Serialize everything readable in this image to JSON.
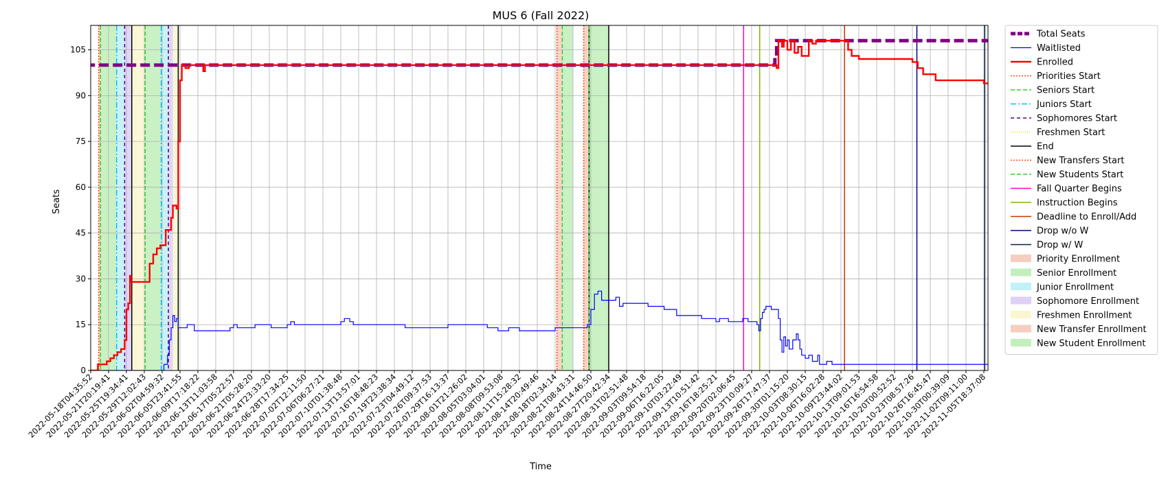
{
  "chart_data": {
    "type": "line",
    "title": "MUS 6 (Fall 2022)",
    "xlabel": "Time",
    "ylabel": "Seats",
    "ylim": [
      0,
      113
    ],
    "y_ticks": [
      0,
      15,
      30,
      45,
      60,
      75,
      90,
      105
    ],
    "grid": true,
    "legend_position": "outside-right",
    "x_tick_labels": [
      "2022-05-18T04:35:52",
      "2022-05-21T20:19:41",
      "2022-05-25T19:34:41",
      "2022-05-29T12:02:43",
      "2022-06-02T04:59:32",
      "2022-06-05T23:41:55",
      "2022-06-09T17:18:22",
      "2022-06-13T11:03:58",
      "2022-06-17T05:22:57",
      "2022-06-21T05:28:20",
      "2022-06-24T23:33:20",
      "2022-06-28T17:34:25",
      "2022-07-02T12:11:50",
      "2022-07-06T06:27:21",
      "2022-07-10T01:38:48",
      "2022-07-13T13:57:01",
      "2022-07-16T18:48:23",
      "2022-07-19T23:38:34",
      "2022-07-23T04:49:12",
      "2022-07-26T09:37:53",
      "2022-07-29T16:13:37",
      "2022-08-01T21:26:02",
      "2022-08-05T03:04:01",
      "2022-08-08T09:53:08",
      "2022-08-11T15:28:32",
      "2022-08-14T20:49:46",
      "2022-08-18T02:34:14",
      "2022-08-21T08:43:31",
      "2022-08-24T14:46:50",
      "2022-08-27T20:42:34",
      "2022-08-31T02:51:48",
      "2022-09-03T09:54:18",
      "2022-09-06T16:22:05",
      "2022-09-10T03:22:49",
      "2022-09-13T10:51:42",
      "2022-09-16T18:25:21",
      "2022-09-20T02:06:45",
      "2022-09-23T10:09:27",
      "2022-09-26T17:47:37",
      "2022-09-30T01:15:20",
      "2022-10-03T08:30:15",
      "2022-10-06T16:02:28",
      "2022-10-09T23:44:02",
      "2022-10-13T09:01:53",
      "2022-10-16T16:54:58",
      "2022-10-20T00:52:52",
      "2022-10-23T08:57:26",
      "2022-10-26T16:45:47",
      "2022-10-30T00:39:09",
      "2022-11-02T09:11:00",
      "2022-11-05T18:37:08"
    ],
    "x_axis_note": "x values expressed as tick index (0 = first tick label, 50 = last tick label)",
    "series": [
      {
        "name": "Total Seats",
        "color": "#800080",
        "style": "dashed-thick",
        "points": [
          [
            -0.3,
            100
          ],
          [
            38.3,
            100
          ],
          [
            38.3,
            103
          ],
          [
            38.4,
            108
          ],
          [
            50.3,
            108
          ]
        ]
      },
      {
        "name": "Waitlisted",
        "color": "#0000ff",
        "style": "solid-thin",
        "points": [
          [
            -0.3,
            0
          ],
          [
            3.9,
            0
          ],
          [
            4.1,
            2
          ],
          [
            4.3,
            5
          ],
          [
            4.4,
            10
          ],
          [
            4.5,
            14
          ],
          [
            4.6,
            18
          ],
          [
            4.7,
            16
          ],
          [
            4.8,
            17
          ],
          [
            4.9,
            14
          ],
          [
            5.3,
            14
          ],
          [
            5.4,
            15
          ],
          [
            5.7,
            15
          ],
          [
            5.8,
            13
          ],
          [
            7.1,
            13
          ],
          [
            7.7,
            13
          ],
          [
            7.8,
            14
          ],
          [
            8.0,
            15
          ],
          [
            8.2,
            14
          ],
          [
            9.0,
            14
          ],
          [
            9.2,
            15
          ],
          [
            10.0,
            15
          ],
          [
            10.1,
            14
          ],
          [
            10.8,
            14
          ],
          [
            11.0,
            15
          ],
          [
            11.2,
            16
          ],
          [
            11.4,
            15
          ],
          [
            13.8,
            15
          ],
          [
            14.0,
            16
          ],
          [
            14.2,
            17
          ],
          [
            14.5,
            16
          ],
          [
            14.7,
            15
          ],
          [
            17.5,
            15
          ],
          [
            17.6,
            14
          ],
          [
            19.8,
            14
          ],
          [
            20.0,
            15
          ],
          [
            22.0,
            15
          ],
          [
            22.2,
            14
          ],
          [
            22.6,
            14
          ],
          [
            22.8,
            13
          ],
          [
            23.2,
            13
          ],
          [
            23.4,
            14
          ],
          [
            23.8,
            14
          ],
          [
            24.0,
            13
          ],
          [
            25.9,
            13
          ],
          [
            26.0,
            14
          ],
          [
            27.3,
            14
          ],
          [
            27.6,
            14
          ],
          [
            27.8,
            15
          ],
          [
            28.0,
            20
          ],
          [
            28.2,
            25
          ],
          [
            28.4,
            26
          ],
          [
            28.6,
            23
          ],
          [
            29.2,
            23
          ],
          [
            29.4,
            24
          ],
          [
            29.6,
            21
          ],
          [
            29.8,
            22
          ],
          [
            31.0,
            22
          ],
          [
            31.2,
            21
          ],
          [
            32.0,
            21
          ],
          [
            32.1,
            20
          ],
          [
            32.7,
            20
          ],
          [
            32.8,
            18
          ],
          [
            34.0,
            18
          ],
          [
            34.2,
            17
          ],
          [
            34.9,
            17
          ],
          [
            35.0,
            16
          ],
          [
            35.2,
            17
          ],
          [
            35.6,
            17
          ],
          [
            35.7,
            16
          ],
          [
            36.4,
            16
          ],
          [
            36.5,
            17
          ],
          [
            36.8,
            16
          ],
          [
            37.2,
            16
          ],
          [
            37.3,
            15
          ],
          [
            37.4,
            13
          ],
          [
            37.5,
            17
          ],
          [
            37.6,
            19
          ],
          [
            37.7,
            20
          ],
          [
            37.8,
            21
          ],
          [
            38.1,
            20
          ],
          [
            38.4,
            20
          ],
          [
            38.5,
            17
          ],
          [
            38.6,
            10
          ],
          [
            38.7,
            6
          ],
          [
            38.8,
            11
          ],
          [
            38.9,
            8
          ],
          [
            39.0,
            10
          ],
          [
            39.1,
            7
          ],
          [
            39.3,
            10
          ],
          [
            39.5,
            12
          ],
          [
            39.6,
            10
          ],
          [
            39.7,
            7
          ],
          [
            39.8,
            5
          ],
          [
            40.0,
            4
          ],
          [
            40.2,
            5
          ],
          [
            40.4,
            3
          ],
          [
            40.7,
            5
          ],
          [
            40.8,
            2
          ],
          [
            41.0,
            2
          ],
          [
            41.2,
            3
          ],
          [
            41.4,
            3
          ],
          [
            41.5,
            2
          ],
          [
            50.3,
            2
          ]
        ]
      },
      {
        "name": "Enrolled",
        "color": "#ff0000",
        "style": "solid-thick",
        "points": [
          [
            -0.3,
            0
          ],
          [
            0.3,
            0
          ],
          [
            0.4,
            2
          ],
          [
            0.7,
            2
          ],
          [
            0.9,
            3
          ],
          [
            1.1,
            4
          ],
          [
            1.3,
            5
          ],
          [
            1.5,
            6
          ],
          [
            1.7,
            7
          ],
          [
            1.9,
            10
          ],
          [
            2.0,
            20
          ],
          [
            2.1,
            22
          ],
          [
            2.2,
            31
          ],
          [
            2.25,
            29
          ],
          [
            3.1,
            29
          ],
          [
            3.3,
            35
          ],
          [
            3.5,
            38
          ],
          [
            3.7,
            40
          ],
          [
            3.9,
            41
          ],
          [
            4.2,
            46
          ],
          [
            4.5,
            50
          ],
          [
            4.6,
            54
          ],
          [
            4.8,
            53
          ],
          [
            4.9,
            75
          ],
          [
            5.0,
            95
          ],
          [
            5.1,
            100
          ],
          [
            5.3,
            99
          ],
          [
            5.5,
            100
          ],
          [
            6.2,
            100
          ],
          [
            6.3,
            98
          ],
          [
            6.4,
            100
          ],
          [
            30.0,
            100
          ],
          [
            38.3,
            100
          ],
          [
            38.4,
            99
          ],
          [
            38.5,
            108
          ],
          [
            38.7,
            106
          ],
          [
            38.8,
            108
          ],
          [
            39.0,
            105
          ],
          [
            39.2,
            108
          ],
          [
            39.4,
            104
          ],
          [
            39.6,
            106
          ],
          [
            39.8,
            103
          ],
          [
            40.0,
            103
          ],
          [
            40.2,
            108
          ],
          [
            40.4,
            107
          ],
          [
            40.6,
            108
          ],
          [
            42.2,
            108
          ],
          [
            42.4,
            105
          ],
          [
            42.6,
            103
          ],
          [
            43.0,
            102
          ],
          [
            45.5,
            102
          ],
          [
            46.0,
            101
          ],
          [
            46.3,
            99
          ],
          [
            46.6,
            97
          ],
          [
            47.1,
            97
          ],
          [
            47.3,
            95
          ],
          [
            49.8,
            95
          ],
          [
            50.0,
            94
          ],
          [
            50.3,
            94
          ]
        ]
      }
    ],
    "vertical_lines": [
      {
        "name": "Priorities Start",
        "x": 0.45,
        "color": "#ff4500",
        "dash": "2,2"
      },
      {
        "name": "Seniors Start",
        "x": 0.55,
        "color": "#32cd32",
        "dash": "6,3"
      },
      {
        "name": "Juniors Start",
        "x": 1.45,
        "color": "#00bfff",
        "dash": "8,3,2,3"
      },
      {
        "name": "Sophomores Start",
        "x": 1.9,
        "color": "#4b0082",
        "dash": "5,4"
      },
      {
        "name": "Freshmen Start",
        "x": 2.3,
        "color": "#ffd700",
        "dash": "1,2"
      },
      {
        "name": "End",
        "x": 2.3,
        "color": "#000000",
        "dash": ""
      },
      {
        "name": "Seniors Start",
        "x": 3.05,
        "color": "#32cd32",
        "dash": "6,3"
      },
      {
        "name": "Juniors Start",
        "x": 3.95,
        "color": "#00bfff",
        "dash": "8,3,2,3"
      },
      {
        "name": "Sophomores Start",
        "x": 4.35,
        "color": "#4b0082",
        "dash": "5,4"
      },
      {
        "name": "End",
        "x": 4.9,
        "color": "#000000",
        "dash": ""
      },
      {
        "name": "New Transfers Start",
        "x": 26.1,
        "color": "#ff4500",
        "dash": "2,2"
      },
      {
        "name": "New Students Start",
        "x": 26.4,
        "color": "#32cd32",
        "dash": "6,3"
      },
      {
        "name": "End",
        "x": 27.9,
        "color": "#000000",
        "dash": ""
      },
      {
        "name": "New Transfers Start",
        "x": 27.6,
        "color": "#ff4500",
        "dash": "2,2"
      },
      {
        "name": "New Students Start",
        "x": 27.9,
        "color": "#32cd32",
        "dash": "6,3"
      },
      {
        "name": "End",
        "x": 29.0,
        "color": "#000000",
        "dash": ""
      },
      {
        "name": "Fall Quarter Begins",
        "x": 36.55,
        "color": "#ff00cc",
        "dash": ""
      },
      {
        "name": "Instruction Begins",
        "x": 37.45,
        "color": "#7cb800",
        "dash": ""
      },
      {
        "name": "Deadline to Enroll/Add",
        "x": 42.2,
        "color": "#cc3300",
        "dash": ""
      },
      {
        "name": "Drop w/o W",
        "x": 46.25,
        "color": "#000080",
        "dash": ""
      },
      {
        "name": "Drop w/ W",
        "x": 50.05,
        "color": "#0b1f4d",
        "dash": ""
      }
    ],
    "spans": [
      {
        "name": "Priority Enrollment",
        "x0": 0.45,
        "x1": 0.55,
        "color": "#f4c6b4"
      },
      {
        "name": "Senior Enrollment",
        "x0": 0.55,
        "x1": 1.45,
        "color": "#b7ecb0"
      },
      {
        "name": "Junior Enrollment",
        "x0": 1.45,
        "x1": 1.9,
        "color": "#b7eef4"
      },
      {
        "name": "Sophomore Enrollment",
        "x0": 1.9,
        "x1": 2.3,
        "color": "#d8c8f4"
      },
      {
        "name": "Freshmen Enrollment",
        "x0": 2.3,
        "x1": 3.05,
        "color": "#f8f4c8"
      },
      {
        "name": "Senior Enrollment",
        "x0": 3.05,
        "x1": 3.95,
        "color": "#b7ecb0"
      },
      {
        "name": "Junior Enrollment",
        "x0": 3.95,
        "x1": 4.35,
        "color": "#b7eef4"
      },
      {
        "name": "Sophomore Enrollment",
        "x0": 4.35,
        "x1": 4.6,
        "color": "#d8c8f4"
      },
      {
        "name": "Freshmen Enrollment",
        "x0": 4.6,
        "x1": 4.9,
        "color": "#f8f4c8"
      },
      {
        "name": "New Transfer Enrollment",
        "x0": 26.1,
        "x1": 26.4,
        "color": "#f4c6b4"
      },
      {
        "name": "New Student Enrollment",
        "x0": 26.4,
        "x1": 27.0,
        "color": "#b7ecb0"
      },
      {
        "name": "New Transfer Enrollment",
        "x0": 27.6,
        "x1": 27.9,
        "color": "#f4c6b4"
      },
      {
        "name": "New Student Enrollment",
        "x0": 27.9,
        "x1": 29.0,
        "color": "#b7ecb0"
      }
    ],
    "legend": [
      {
        "label": "Total Seats",
        "kind": "line",
        "color": "#800080",
        "dash": "7,3",
        "width": 5
      },
      {
        "label": "Waitlisted",
        "kind": "line",
        "color": "#0000ff",
        "dash": "",
        "width": 1.2
      },
      {
        "label": "Enrolled",
        "kind": "line",
        "color": "#ff0000",
        "dash": "",
        "width": 2.5
      },
      {
        "label": "Priorities Start",
        "kind": "line",
        "color": "#ff4500",
        "dash": "2,2",
        "width": 1.5
      },
      {
        "label": "Seniors Start",
        "kind": "line",
        "color": "#32cd32",
        "dash": "6,3",
        "width": 1.5
      },
      {
        "label": "Juniors Start",
        "kind": "line",
        "color": "#00bfff",
        "dash": "8,3,2,3",
        "width": 1.5
      },
      {
        "label": "Sophomores Start",
        "kind": "line",
        "color": "#4b0082",
        "dash": "5,4",
        "width": 1.5
      },
      {
        "label": "Freshmen Start",
        "kind": "line",
        "color": "#ffd700",
        "dash": "1,2",
        "width": 1.5
      },
      {
        "label": "End",
        "kind": "line",
        "color": "#000000",
        "dash": "",
        "width": 1.5
      },
      {
        "label": "New Transfers Start",
        "kind": "line",
        "color": "#ff4500",
        "dash": "2,2",
        "width": 1.5
      },
      {
        "label": "New Students Start",
        "kind": "line",
        "color": "#32cd32",
        "dash": "6,3",
        "width": 1.5
      },
      {
        "label": "Fall Quarter Begins",
        "kind": "line",
        "color": "#ff00cc",
        "dash": "",
        "width": 1.5
      },
      {
        "label": "Instruction Begins",
        "kind": "line",
        "color": "#7cb800",
        "dash": "",
        "width": 1.5
      },
      {
        "label": "Deadline to Enroll/Add",
        "kind": "line",
        "color": "#cc3300",
        "dash": "",
        "width": 1.5
      },
      {
        "label": "Drop w/o W",
        "kind": "line",
        "color": "#000080",
        "dash": "",
        "width": 1.5
      },
      {
        "label": "Drop w/ W",
        "kind": "line",
        "color": "#0b1f4d",
        "dash": "",
        "width": 1.5
      },
      {
        "label": "Priority Enrollment",
        "kind": "patch",
        "color": "#f4c6b4"
      },
      {
        "label": "Senior Enrollment",
        "kind": "patch",
        "color": "#b7ecb0"
      },
      {
        "label": "Junior Enrollment",
        "kind": "patch",
        "color": "#b7eef4"
      },
      {
        "label": "Sophomore Enrollment",
        "kind": "patch",
        "color": "#d8c8f4"
      },
      {
        "label": "Freshmen Enrollment",
        "kind": "patch",
        "color": "#f8f4c8"
      },
      {
        "label": "New Transfer Enrollment",
        "kind": "patch",
        "color": "#f4c6b4"
      },
      {
        "label": "New Student Enrollment",
        "kind": "patch",
        "color": "#b7ecb0"
      }
    ]
  }
}
